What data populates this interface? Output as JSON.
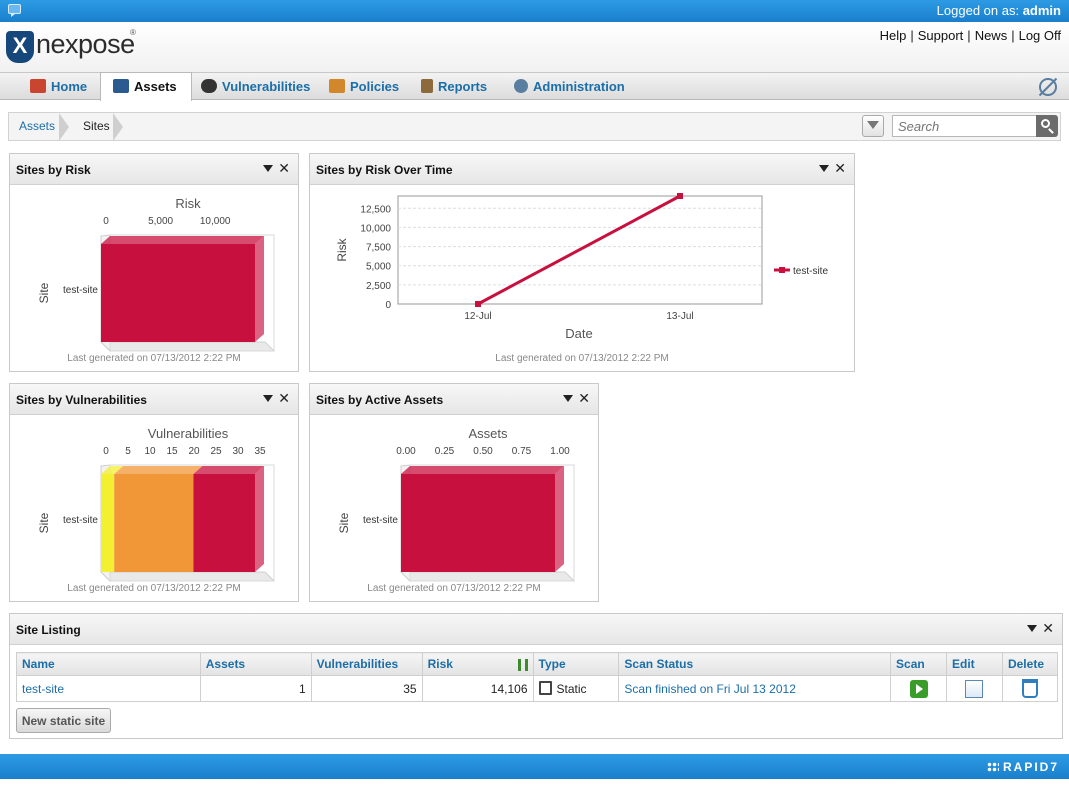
{
  "topbar": {
    "login_prefix": "Logged on as:",
    "user": "admin"
  },
  "header": {
    "logo_text": "nexpose",
    "logo_mark": "X",
    "logo_reg": "®",
    "links": [
      "Help",
      "Support",
      "News",
      "Log Off"
    ]
  },
  "tabs": [
    {
      "label": "Home",
      "icon": "home-icon",
      "color": "#c9452f"
    },
    {
      "label": "Assets",
      "icon": "assets-icon",
      "color": "#2a5a8f",
      "active": true
    },
    {
      "label": "Vulnerabilities",
      "icon": "vulnerabilities-icon",
      "color": "#333333"
    },
    {
      "label": "Policies",
      "icon": "policies-icon",
      "color": "#d2872a"
    },
    {
      "label": "Reports",
      "icon": "reports-icon",
      "color": "#8c6a3c"
    },
    {
      "label": "Administration",
      "icon": "administration-icon",
      "color": "#5a7ea0"
    }
  ],
  "breadcrumb": {
    "items": [
      "Assets",
      "Sites"
    ]
  },
  "search": {
    "placeholder": "Search"
  },
  "widgets": {
    "sites_by_risk": {
      "title": "Sites by Risk",
      "footer": "Last generated on 07/13/2012 2:22 PM"
    },
    "risk_over_time": {
      "title": "Sites by Risk Over Time",
      "footer": "Last generated on 07/13/2012 2:22 PM"
    },
    "sites_by_vulns": {
      "title": "Sites by Vulnerabilities",
      "footer": "Last generated on 07/13/2012 2:22 PM"
    },
    "sites_by_assets": {
      "title": "Sites by Active Assets",
      "footer": "Last generated on 07/13/2012 2:22 PM"
    }
  },
  "chart_data": [
    {
      "type": "bar",
      "title": "Risk",
      "ylabel": "Site",
      "categories": [
        "test-site"
      ],
      "series": [
        {
          "values": [
            14106
          ],
          "color": "#c8103e"
        }
      ],
      "xlim": [
        0,
        14106
      ],
      "ticks": [
        0,
        5000,
        10000
      ],
      "tick_labels": [
        "0",
        "5,000",
        "10,000"
      ],
      "orientation": "horizontal",
      "axis_position": "top"
    },
    {
      "type": "line",
      "xlabel": "Date",
      "ylabel": "Risk",
      "x": [
        "12-Jul",
        "13-Jul"
      ],
      "series": [
        {
          "name": "test-site",
          "values": [
            0,
            14106
          ],
          "color": "#c8103e"
        }
      ],
      "ylim": [
        0,
        14106
      ],
      "ticks": [
        0,
        2500,
        5000,
        7500,
        10000,
        12500
      ],
      "tick_labels": [
        "0",
        "2,500",
        "5,000",
        "7,500",
        "10,000",
        "12,500"
      ],
      "grid": true,
      "legend": "right"
    },
    {
      "type": "bar",
      "stacked": true,
      "title": "Vulnerabilities",
      "ylabel": "Site",
      "categories": [
        "test-site"
      ],
      "series": [
        {
          "values": [
            3
          ],
          "color": "#f3f032"
        },
        {
          "values": [
            18
          ],
          "color": "#f19737"
        },
        {
          "values": [
            14
          ],
          "color": "#c8103e"
        }
      ],
      "xlim": [
        0,
        35
      ],
      "ticks": [
        0,
        5,
        10,
        15,
        20,
        25,
        30,
        35
      ],
      "tick_labels": [
        "0",
        "5",
        "10",
        "15",
        "20",
        "25",
        "30",
        "35"
      ],
      "orientation": "horizontal",
      "axis_position": "top"
    },
    {
      "type": "bar",
      "title": "Assets",
      "ylabel": "Site",
      "categories": [
        "test-site"
      ],
      "series": [
        {
          "values": [
            1
          ],
          "color": "#c8103e"
        }
      ],
      "xlim": [
        0,
        1
      ],
      "ticks": [
        0,
        0.25,
        0.5,
        0.75,
        1
      ],
      "tick_labels": [
        "0.00",
        "0.25",
        "0.50",
        "0.75",
        "1.00"
      ],
      "orientation": "horizontal",
      "axis_position": "top"
    }
  ],
  "site_listing": {
    "title": "Site Listing",
    "columns": [
      "Name",
      "Assets",
      "Vulnerabilities",
      "Risk",
      "Type",
      "Scan Status",
      "Scan",
      "Edit",
      "Delete"
    ],
    "rows": [
      {
        "name": "test-site",
        "assets": "1",
        "vulnerabilities": "35",
        "risk": "14,106",
        "type": "Static",
        "scan_status": "Scan finished on Fri Jul 13 2012"
      }
    ],
    "new_button": "New static site"
  },
  "footer": {
    "brand": "RAPID7"
  }
}
